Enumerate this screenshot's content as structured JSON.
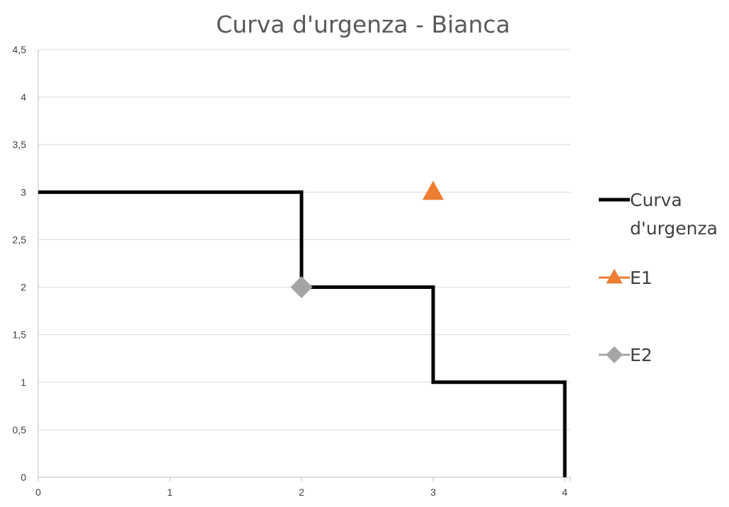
{
  "chart_data": {
    "type": "line",
    "title": "Curva d'urgenza - Bianca",
    "xlabel": "",
    "ylabel": "",
    "xlim": [
      0,
      4.5
    ],
    "ylim": [
      0,
      4.5
    ],
    "x_ticks": [
      0,
      1,
      2,
      3,
      4
    ],
    "x_tick_labels": [
      "0",
      "1",
      "2",
      "3",
      "4"
    ],
    "y_ticks": [
      0,
      0.5,
      1,
      1.5,
      2,
      2.5,
      3,
      3.5,
      4,
      4.5
    ],
    "y_tick_labels": [
      "0",
      "0,5",
      "1",
      "1,5",
      "2",
      "2,5",
      "3",
      "3,5",
      "4",
      "4,5"
    ],
    "grid": "horizontal",
    "legend_position": "right",
    "series": [
      {
        "name": "Curva d'urgenza",
        "legend_lines": [
          "Curva",
          "d'urgenza"
        ],
        "style": "line",
        "color": "#000000",
        "x": [
          0,
          2,
          2,
          3,
          3,
          4,
          4
        ],
        "y": [
          3,
          3,
          2,
          2,
          1,
          1,
          0
        ]
      },
      {
        "name": "E1",
        "legend_lines": [
          "E1"
        ],
        "style": "marker",
        "marker": "triangle",
        "color": "#ED7D31",
        "x": [
          3
        ],
        "y": [
          3
        ]
      },
      {
        "name": "E2",
        "legend_lines": [
          "E2"
        ],
        "style": "marker",
        "marker": "diamond",
        "color": "#A5A5A5",
        "x": [
          2
        ],
        "y": [
          2
        ]
      }
    ]
  }
}
